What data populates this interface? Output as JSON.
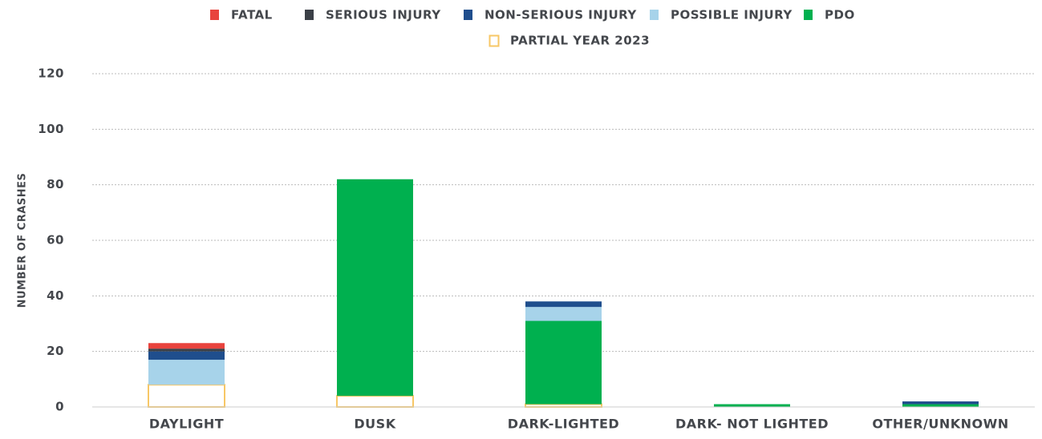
{
  "chart_data": {
    "type": "stacked_bar",
    "y_label": "NUMBER OF CRASHES",
    "categories": [
      "DAYLIGHT",
      "DUSK",
      "DARK-LIGHTED",
      "DARK- NOT LIGHTED",
      "OTHER/UNKNOWN"
    ],
    "series": [
      {
        "name": "PARTIAL YEAR 2023",
        "color": "#f7c766",
        "outline": true,
        "values": [
          8,
          4,
          1,
          0,
          0
        ]
      },
      {
        "name": "PDO",
        "color": "#00b04f",
        "values": [
          0,
          78,
          30,
          1,
          1
        ]
      },
      {
        "name": "POSSIBLE INJURY",
        "color": "#a7d3ea",
        "values": [
          9,
          0,
          5,
          0,
          0
        ]
      },
      {
        "name": "NON-SERIOUS INJURY",
        "color": "#1f4e8d",
        "values": [
          3,
          0,
          2,
          0,
          1
        ]
      },
      {
        "name": "SERIOUS INJURY",
        "color": "#3b4047",
        "values": [
          1,
          0,
          0,
          0,
          0
        ]
      },
      {
        "name": "FATAL",
        "color": "#e8433d",
        "values": [
          2,
          0,
          0,
          0,
          0
        ]
      }
    ],
    "ylim": [
      0,
      120
    ],
    "yticks": [
      0,
      20,
      40,
      60,
      80,
      100,
      120
    ],
    "grid": true
  }
}
